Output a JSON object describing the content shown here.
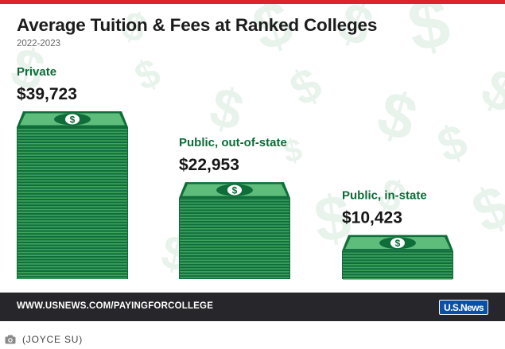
{
  "chart_data": {
    "type": "bar",
    "title": "Average Tuition & Fees at Ranked Colleges",
    "subtitle": "2022-2023",
    "categories": [
      "Private",
      "Public, out-of-state",
      "Public, in-state"
    ],
    "values": [
      39723,
      22953,
      10423
    ],
    "value_labels": [
      "$39,723",
      "$22,953",
      "$10,423"
    ],
    "bar_style": "stack-of-dollar-bills",
    "colors": {
      "bill_dark": "#0f6d3a",
      "bill_light": "#3fa460",
      "bill_face": "#5fbd7c",
      "category_text": "#0b6b37",
      "value_text": "#161616"
    }
  },
  "footer": {
    "url": "WWW.USNEWS.COM/PAYINGFORCOLLEGE",
    "logo_text": "U.S.News",
    "background": "#26262b"
  },
  "accent_color": "#d9252b",
  "caption": {
    "icon": "camera-icon",
    "credit": "(JOYCE SU)"
  }
}
